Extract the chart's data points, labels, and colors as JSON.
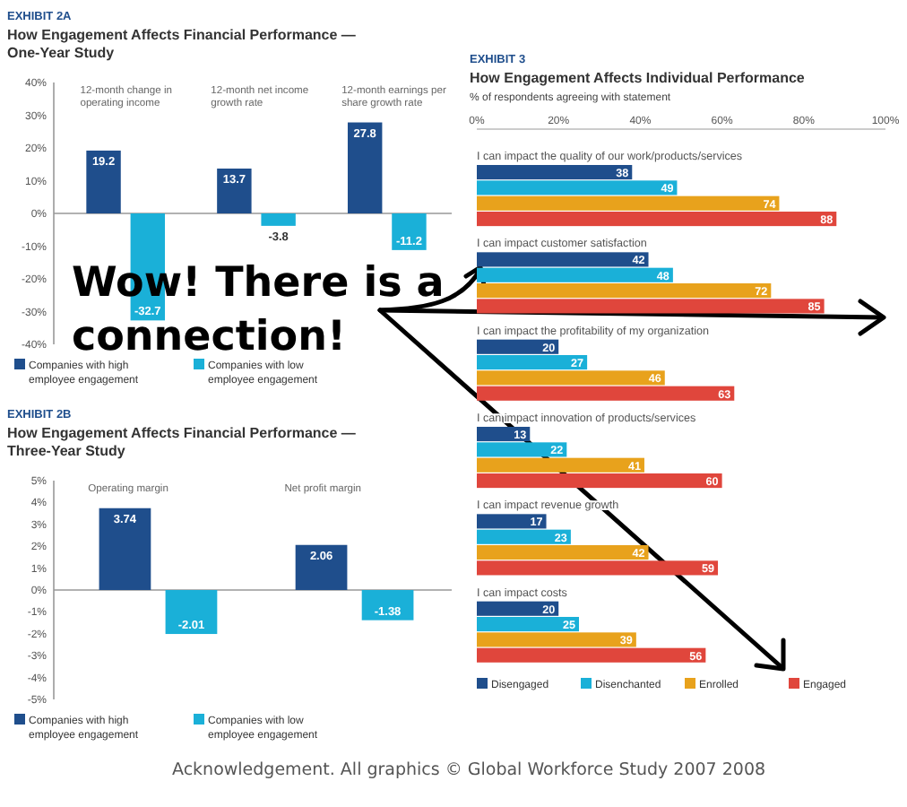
{
  "chart_data": [
    {
      "type": "bar",
      "title": "EXHIBIT 2A",
      "subtitle": "How Engagement Affects Financial Performance — One-Year Study",
      "categories": [
        "12-month change in operating income",
        "12-month net income growth rate",
        "12-month earnings per share growth rate"
      ],
      "series": [
        {
          "name": "Companies with high employee engagement",
          "color": "#1f4e8c",
          "values": [
            19.2,
            13.7,
            27.8
          ]
        },
        {
          "name": "Companies with low employee engagement",
          "color": "#1ab0d8",
          "values": [
            -32.7,
            -3.8,
            -11.2
          ]
        }
      ],
      "ylim": [
        -40,
        40
      ],
      "yticks": [
        {
          "value": -40,
          "label": "-40%"
        },
        {
          "value": -30,
          "label": "-30%"
        },
        {
          "value": -20,
          "label": "-20%"
        },
        {
          "value": -10,
          "label": "-10%"
        },
        {
          "value": 0,
          "label": "0%"
        },
        {
          "value": 10,
          "label": "10%"
        },
        {
          "value": 20,
          "label": "20%"
        },
        {
          "value": 30,
          "label": "30%"
        },
        {
          "value": 40,
          "label": "40%"
        }
      ],
      "data_labels": true,
      "legend": "bottom",
      "annotations": [
        "Wow! There is a connection!"
      ]
    },
    {
      "type": "bar",
      "orientation": "horizontal",
      "title": "EXHIBIT 3",
      "subtitle": "How Engagement Affects Individual Performance",
      "xlabel": "% of respondents agreeing with statement",
      "categories": [
        "I can impact the quality of our work/products/services",
        "I can impact customer satisfaction",
        "I can impact the profitability of my organization",
        "I can impact innovation of products/services",
        "I can impact revenue growth",
        "I can impact costs"
      ],
      "series": [
        {
          "name": "Disengaged",
          "color": "#1f4e8c",
          "values": [
            38,
            42,
            20,
            13,
            17,
            20
          ]
        },
        {
          "name": "Disenchanted",
          "color": "#1ab0d8",
          "values": [
            49,
            48,
            27,
            22,
            23,
            25
          ]
        },
        {
          "name": "Enrolled",
          "color": "#e8a21c",
          "values": [
            74,
            72,
            46,
            41,
            42,
            39
          ]
        },
        {
          "name": "Engaged",
          "color": "#e0463c",
          "values": [
            88,
            85,
            63,
            60,
            59,
            56
          ]
        }
      ],
      "xlim": [
        0,
        100
      ],
      "xticks": [
        {
          "value": 0,
          "label": "0%"
        },
        {
          "value": 20,
          "label": "20%"
        },
        {
          "value": 40,
          "label": "40%"
        },
        {
          "value": 60,
          "label": "60%"
        },
        {
          "value": 80,
          "label": "80%"
        },
        {
          "value": 100,
          "label": "100%"
        }
      ],
      "data_labels": true,
      "legend": "bottom"
    },
    {
      "type": "bar",
      "title": "EXHIBIT 2B",
      "subtitle": "How Engagement Affects Financial Performance — Three-Year Study",
      "categories": [
        "Operating margin",
        "Net profit margin"
      ],
      "series": [
        {
          "name": "Companies with high employee engagement",
          "color": "#1f4e8c",
          "values": [
            3.74,
            2.06
          ]
        },
        {
          "name": "Companies with low employee engagement",
          "color": "#1ab0d8",
          "values": [
            -2.01,
            -1.38
          ]
        }
      ],
      "ylim": [
        -5,
        5
      ],
      "yticks": [
        {
          "value": -5,
          "label": "-5%"
        },
        {
          "value": -4,
          "label": "-4%"
        },
        {
          "value": -3,
          "label": "-3%"
        },
        {
          "value": -2,
          "label": "-2%"
        },
        {
          "value": -1,
          "label": "-1%"
        },
        {
          "value": 0,
          "label": "0%"
        },
        {
          "value": 1,
          "label": "1%"
        },
        {
          "value": 2,
          "label": "2%"
        },
        {
          "value": 3,
          "label": "3%"
        },
        {
          "value": 4,
          "label": "4%"
        },
        {
          "value": 5,
          "label": "5%"
        }
      ],
      "data_labels": true,
      "legend": "bottom",
      "annotations": [
        "Acknowledgement. All graphics © Global Workforce Study 2007 2008"
      ]
    }
  ]
}
